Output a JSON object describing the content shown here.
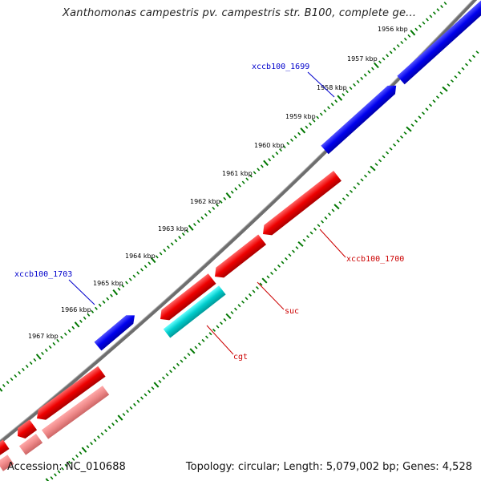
{
  "title": "Xanthomonas campestris pv. campestris str. B100, complete ge...",
  "accession": "Accession: NC_010688",
  "summary": "Topology: circular; Length: 5,079,002 bp; Genes: 4,528",
  "colors": {
    "backbone": "#777777",
    "forward_gene": "#0000ee",
    "reverse_gene": "#ee0000",
    "reverse_gene_light": "#ee8888",
    "rna_gene": "#00cccc",
    "tick": "#007700",
    "forward_label": "#0000cc",
    "reverse_label": "#cc0000"
  },
  "kbp_labels": [
    "1956 kbp",
    "1957 kbp",
    "1958 kbp",
    "1959 kbp",
    "1960 kbp",
    "1961 kbp",
    "1962 kbp",
    "1963 kbp",
    "1964 kbp",
    "1965 kbp",
    "1966 kbp",
    "1967 kbp"
  ],
  "gene_labels": {
    "xccb100_1699": "xccb100_1699",
    "xccb100_1700": "xccb100_1700",
    "suc": "suc",
    "cgt": "cgt",
    "xccb100_1703": "xccb100_1703"
  }
}
